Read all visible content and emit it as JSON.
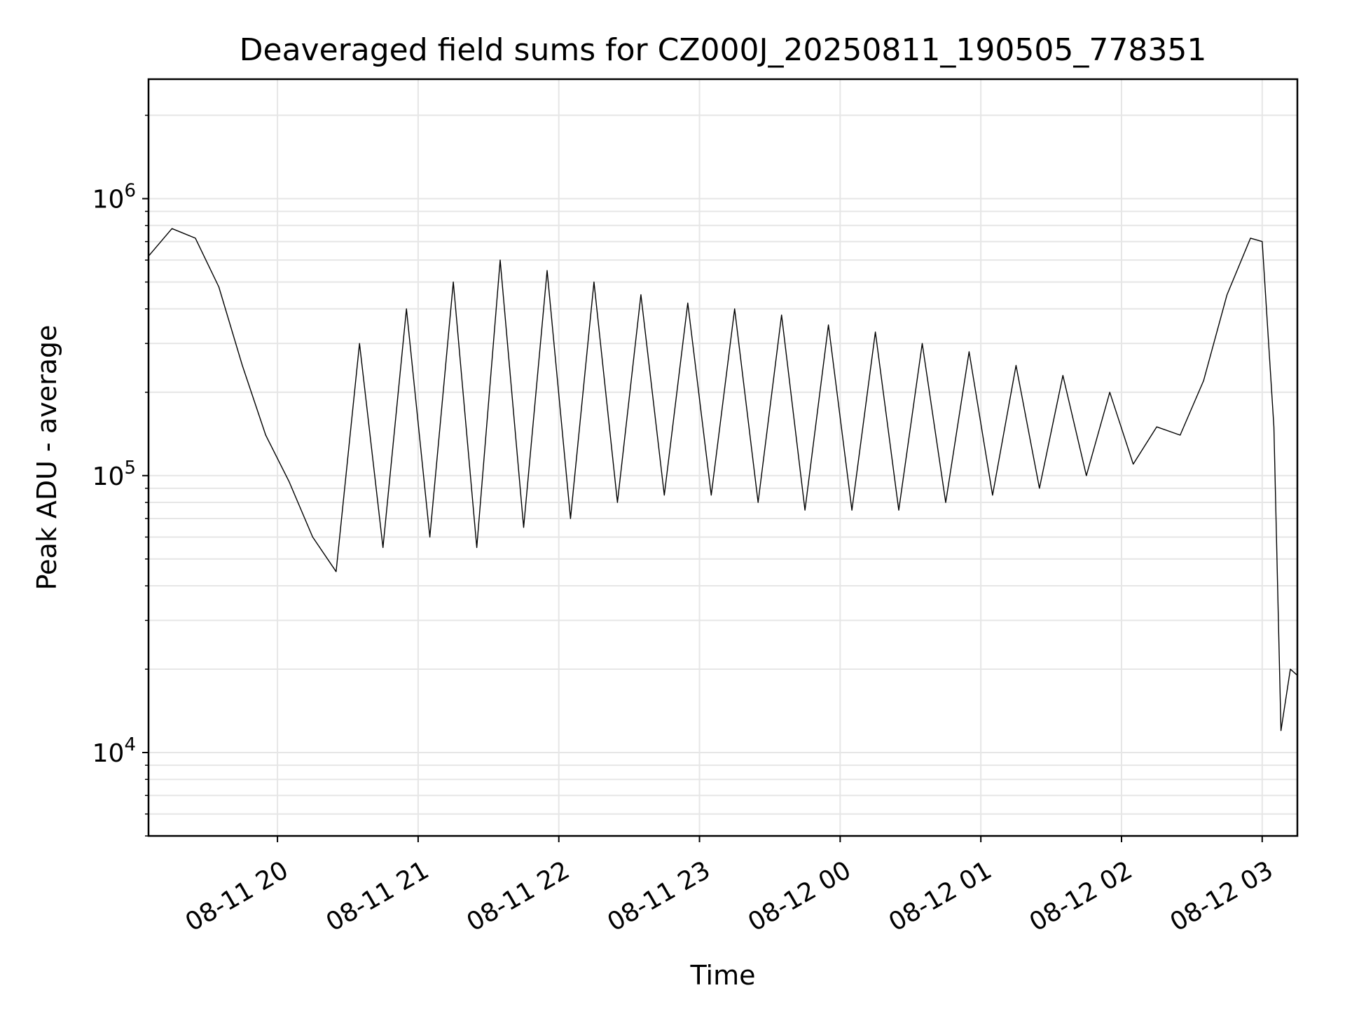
{
  "chart_data": {
    "type": "line",
    "title": "Deaveraged field sums for CZ000J_20250811_190505_778351",
    "xlabel": "Time",
    "ylabel": "Peak ADU - average",
    "yscale": "log",
    "xlim": [
      "2025-08-11 19:05",
      "2025-08-12 03:15"
    ],
    "ylim": [
      5000,
      2700000
    ],
    "grid": true,
    "line_color": "#000000",
    "grid_color": "#e6e6e6",
    "x_ticks": [
      {
        "label": "08-11 20",
        "value": "2025-08-11 20:00"
      },
      {
        "label": "08-11 21",
        "value": "2025-08-11 21:00"
      },
      {
        "label": "08-11 22",
        "value": "2025-08-11 22:00"
      },
      {
        "label": "08-11 23",
        "value": "2025-08-11 23:00"
      },
      {
        "label": "08-12 00",
        "value": "2025-08-12 00:00"
      },
      {
        "label": "08-12 01",
        "value": "2025-08-12 01:00"
      },
      {
        "label": "08-12 02",
        "value": "2025-08-12 02:00"
      },
      {
        "label": "08-12 03",
        "value": "2025-08-12 03:00"
      }
    ],
    "y_ticks": [
      {
        "base": "10",
        "exp": "4",
        "value": 10000
      },
      {
        "base": "10",
        "exp": "5",
        "value": 100000
      },
      {
        "base": "10",
        "exp": "6",
        "value": 1000000
      }
    ],
    "series": [
      {
        "points": [
          [
            "2025-08-11 19:05",
            620000
          ],
          [
            "2025-08-11 19:15",
            780000
          ],
          [
            "2025-08-11 19:25",
            720000
          ],
          [
            "2025-08-11 19:35",
            480000
          ],
          [
            "2025-08-11 19:45",
            250000
          ],
          [
            "2025-08-11 19:55",
            140000
          ],
          [
            "2025-08-11 20:05",
            95000
          ],
          [
            "2025-08-11 20:15",
            60000
          ],
          [
            "2025-08-11 20:25",
            45000
          ],
          [
            "2025-08-11 20:35",
            300000
          ],
          [
            "2025-08-11 20:45",
            55000
          ],
          [
            "2025-08-11 20:55",
            400000
          ],
          [
            "2025-08-11 21:05",
            60000
          ],
          [
            "2025-08-11 21:15",
            500000
          ],
          [
            "2025-08-11 21:25",
            55000
          ],
          [
            "2025-08-11 21:35",
            600000
          ],
          [
            "2025-08-11 21:45",
            65000
          ],
          [
            "2025-08-11 21:55",
            550000
          ],
          [
            "2025-08-11 22:05",
            70000
          ],
          [
            "2025-08-11 22:15",
            500000
          ],
          [
            "2025-08-11 22:25",
            80000
          ],
          [
            "2025-08-11 22:35",
            450000
          ],
          [
            "2025-08-11 22:45",
            85000
          ],
          [
            "2025-08-11 22:55",
            420000
          ],
          [
            "2025-08-11 23:05",
            85000
          ],
          [
            "2025-08-11 23:15",
            400000
          ],
          [
            "2025-08-11 23:25",
            80000
          ],
          [
            "2025-08-11 23:35",
            380000
          ],
          [
            "2025-08-11 23:45",
            75000
          ],
          [
            "2025-08-11 23:55",
            350000
          ],
          [
            "2025-08-12 00:05",
            75000
          ],
          [
            "2025-08-12 00:15",
            330000
          ],
          [
            "2025-08-12 00:25",
            75000
          ],
          [
            "2025-08-12 00:35",
            300000
          ],
          [
            "2025-08-12 00:45",
            80000
          ],
          [
            "2025-08-12 00:55",
            280000
          ],
          [
            "2025-08-12 01:05",
            85000
          ],
          [
            "2025-08-12 01:15",
            250000
          ],
          [
            "2025-08-12 01:25",
            90000
          ],
          [
            "2025-08-12 01:35",
            230000
          ],
          [
            "2025-08-12 01:45",
            100000
          ],
          [
            "2025-08-12 01:55",
            200000
          ],
          [
            "2025-08-12 02:05",
            110000
          ],
          [
            "2025-08-12 02:15",
            150000
          ],
          [
            "2025-08-12 02:25",
            140000
          ],
          [
            "2025-08-12 02:35",
            220000
          ],
          [
            "2025-08-12 02:45",
            450000
          ],
          [
            "2025-08-12 02:55",
            720000
          ],
          [
            "2025-08-12 03:00",
            700000
          ],
          [
            "2025-08-12 03:05",
            150000
          ],
          [
            "2025-08-12 03:08",
            12000
          ],
          [
            "2025-08-12 03:12",
            20000
          ],
          [
            "2025-08-12 03:15",
            19000
          ]
        ]
      }
    ]
  }
}
